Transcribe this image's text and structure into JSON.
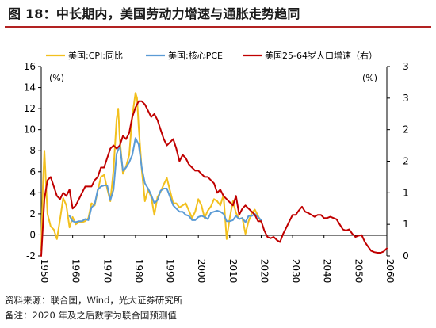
{
  "title": "图 18：中长期内，美国劳动力增速与通胀走势趋同",
  "source": "资料来源：联合国，Wind，光大证券研究所",
  "footnote": "备注：2020 年及之后数字为联合国预测值",
  "chart_data": {
    "type": "line",
    "left_unit": "(%)",
    "right_unit": "(%)",
    "x_range": [
      1950,
      2060
    ],
    "ylim_left": [
      -2,
      16
    ],
    "ylim_right": [
      0,
      3
    ],
    "x_ticks": [
      "1950",
      "1960",
      "1970",
      "1980",
      "1990",
      "2000",
      "2010",
      "2020",
      "2030",
      "2040",
      "2050",
      "2060"
    ],
    "left_ticks": [
      "-2",
      "0",
      "2",
      "4",
      "6",
      "8",
      "10",
      "12",
      "14",
      "16"
    ],
    "right_ticks": [
      "0",
      "1",
      "1",
      "2",
      "2",
      "3",
      "3"
    ],
    "right_tick_positions": [
      0,
      0.5,
      1,
      1.5,
      2,
      2.5,
      3
    ],
    "legend_position": "top",
    "series": [
      {
        "name": "美国:CPI:同比",
        "axis": "left",
        "color": "#f2c01e",
        "x": [
          1950,
          1950.5,
          1951,
          1951.5,
          1952,
          1953,
          1954,
          1955,
          1956,
          1957,
          1958,
          1959,
          1960,
          1961,
          1962,
          1963,
          1964,
          1965,
          1966,
          1967,
          1968,
          1969,
          1970,
          1971,
          1972,
          1973,
          1974,
          1974.5,
          1975,
          1976,
          1977,
          1978,
          1979,
          1980,
          1980.5,
          1981,
          1982,
          1983,
          1984,
          1985,
          1986,
          1987,
          1988,
          1989,
          1990,
          1991,
          1992,
          1993,
          1994,
          1995,
          1996,
          1997,
          1998,
          1999,
          2000,
          2001,
          2002,
          2003,
          2004,
          2005,
          2006,
          2007,
          2008,
          2009,
          2010,
          2011,
          2012,
          2013,
          2014,
          2015,
          2016,
          2017,
          2018,
          2019,
          2020
        ],
        "y": [
          -1.5,
          4.5,
          8,
          5,
          2.0,
          0.8,
          0.5,
          -0.4,
          1.5,
          3.5,
          2.8,
          0.7,
          1.7,
          1.0,
          1.2,
          1.2,
          1.3,
          1.6,
          3.0,
          2.8,
          4.2,
          5.5,
          5.7,
          4.4,
          3.2,
          6.2,
          11.0,
          12.0,
          9.1,
          5.8,
          6.5,
          7.6,
          11.3,
          13.5,
          13.0,
          10.3,
          6.2,
          3.2,
          4.3,
          3.6,
          1.9,
          3.6,
          4.1,
          4.8,
          5.4,
          4.2,
          3.0,
          3.0,
          2.6,
          2.8,
          3.0,
          2.3,
          1.6,
          2.2,
          3.4,
          2.8,
          1.6,
          2.3,
          2.7,
          3.4,
          3.2,
          2.8,
          3.8,
          -0.4,
          1.6,
          3.2,
          2.1,
          1.5,
          1.6,
          0.1,
          1.3,
          2.1,
          2.4,
          1.8,
          1.2
        ]
      },
      {
        "name": "美国:核心PCE",
        "axis": "left",
        "color": "#5b9bd5",
        "x": [
          1959,
          1960,
          1961,
          1962,
          1963,
          1964,
          1965,
          1966,
          1967,
          1968,
          1969,
          1970,
          1971,
          1972,
          1973,
          1974,
          1975,
          1976,
          1977,
          1978,
          1979,
          1980,
          1981,
          1982,
          1983,
          1984,
          1985,
          1986,
          1987,
          1988,
          1989,
          1990,
          1991,
          1992,
          1993,
          1994,
          1995,
          1996,
          1997,
          1998,
          1999,
          2000,
          2001,
          2002,
          2003,
          2004,
          2005,
          2006,
          2007,
          2008,
          2009,
          2010,
          2011,
          2012,
          2013,
          2014,
          2015,
          2016,
          2017,
          2018,
          2019,
          2020
        ],
        "y": [
          1.8,
          1.3,
          1.2,
          1.3,
          1.3,
          1.5,
          1.4,
          2.6,
          2.9,
          4.3,
          4.6,
          4.7,
          4.7,
          3.3,
          4.3,
          7.7,
          8.5,
          6.1,
          6.4,
          6.9,
          7.6,
          9.2,
          8.6,
          6.4,
          4.9,
          4.4,
          3.8,
          3.0,
          3.3,
          4.2,
          4.4,
          4.4,
          3.6,
          2.8,
          2.5,
          2.2,
          2.2,
          1.9,
          1.8,
          1.4,
          1.4,
          1.7,
          1.8,
          1.7,
          1.5,
          2.1,
          2.2,
          2.3,
          2.2,
          2.0,
          1.3,
          1.3,
          1.4,
          1.8,
          1.5,
          1.6,
          1.2,
          1.8,
          1.8,
          2.0,
          1.7,
          1.4
        ]
      },
      {
        "name": "美国25-64岁人口增速（右）",
        "axis": "right",
        "color": "#c00000",
        "x": [
          1950,
          1951,
          1952,
          1953,
          1954,
          1955,
          1956,
          1957,
          1958,
          1959,
          1960,
          1961,
          1962,
          1963,
          1964,
          1965,
          1966,
          1967,
          1968,
          1969,
          1970,
          1971,
          1972,
          1973,
          1974,
          1975,
          1976,
          1977,
          1978,
          1979,
          1980,
          1981,
          1982,
          1983,
          1984,
          1985,
          1986,
          1987,
          1988,
          1989,
          1990,
          1991,
          1992,
          1993,
          1994,
          1995,
          1996,
          1997,
          1998,
          1999,
          2000,
          2001,
          2002,
          2003,
          2004,
          2005,
          2006,
          2007,
          2008,
          2009,
          2010,
          2011,
          2012,
          2013,
          2014,
          2015,
          2016,
          2017,
          2018,
          2019,
          2020,
          2021,
          2022,
          2023,
          2024,
          2025,
          2026,
          2027,
          2028,
          2029,
          2030,
          2031,
          2032,
          2033,
          2034,
          2035,
          2036,
          2037,
          2038,
          2039,
          2040,
          2041,
          2042,
          2043,
          2044,
          2045,
          2046,
          2047,
          2048,
          2049,
          2050,
          2051,
          2052,
          2053,
          2054,
          2055,
          2056,
          2057,
          2058,
          2059,
          2060
        ],
        "y": [
          0.0,
          0.9,
          1.2,
          1.25,
          1.1,
          0.95,
          0.9,
          1.0,
          0.95,
          1.05,
          0.75,
          0.8,
          0.9,
          1.0,
          1.1,
          1.1,
          1.1,
          1.2,
          1.25,
          1.4,
          1.4,
          1.55,
          1.7,
          1.75,
          1.7,
          1.75,
          1.9,
          1.85,
          1.95,
          2.2,
          2.35,
          2.45,
          2.45,
          2.4,
          2.3,
          2.2,
          2.25,
          2.15,
          2.0,
          1.85,
          1.75,
          1.8,
          1.85,
          1.7,
          1.5,
          1.6,
          1.55,
          1.45,
          1.4,
          1.35,
          1.35,
          1.3,
          1.25,
          1.25,
          1.2,
          1.15,
          1.0,
          1.05,
          0.95,
          0.9,
          0.85,
          0.8,
          0.95,
          0.65,
          0.75,
          0.8,
          0.75,
          0.7,
          0.65,
          0.55,
          0.55,
          0.4,
          0.3,
          0.28,
          0.3,
          0.25,
          0.22,
          0.35,
          0.45,
          0.55,
          0.65,
          0.65,
          0.72,
          0.78,
          0.7,
          0.68,
          0.65,
          0.62,
          0.65,
          0.65,
          0.6,
          0.6,
          0.62,
          0.6,
          0.58,
          0.5,
          0.42,
          0.4,
          0.42,
          0.35,
          0.3,
          0.32,
          0.33,
          0.22,
          0.15,
          0.08,
          0.06,
          0.05,
          0.05,
          0.07,
          0.12
        ]
      }
    ]
  }
}
